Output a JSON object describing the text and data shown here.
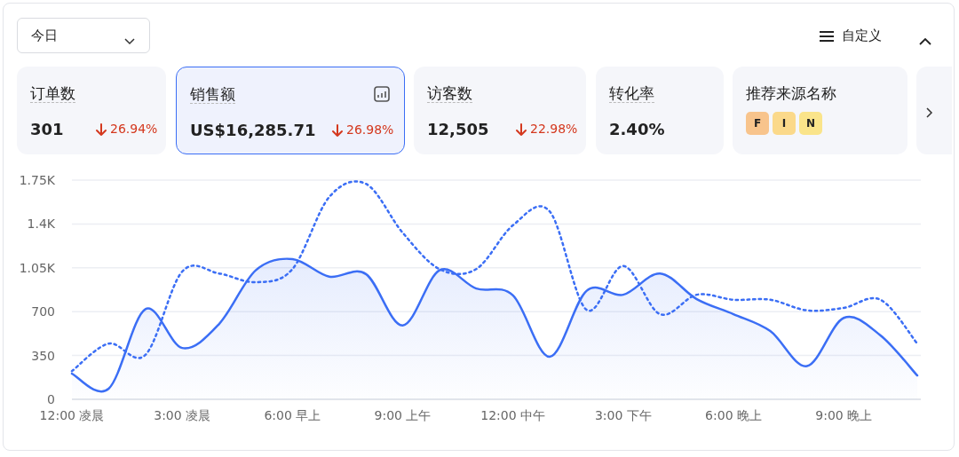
{
  "chart_data": [
    {
      "type": "other",
      "annotations": [
        "今日",
        "自定义",
        "订单数",
        "301",
        "26.94%",
        "销售额",
        "US$16,285.71",
        "26.98%",
        "访客数",
        "12,505",
        "22.98%",
        "转化率",
        "2.40%",
        "推荐来源名称",
        "F",
        "I",
        "N"
      ]
    },
    {
      "type": "line",
      "categories": [
        "12:00 凌晨",
        null,
        null,
        "3:00 凌晨",
        null,
        null,
        "6:00 早上",
        null,
        null,
        "9:00 上午",
        null,
        null,
        "12:00 中午",
        null,
        null,
        "3:00 下午",
        null,
        null,
        "6:00 晚上",
        null,
        null,
        "9:00 晚上",
        null,
        null
      ],
      "ylim": [
        0,
        1750
      ],
      "yticks": [
        0,
        350,
        700,
        {
          "value": 1050,
          "label": "1.05K"
        },
        {
          "value": 1400,
          "label": "1.4K"
        },
        {
          "value": 1750,
          "label": "1.75K"
        }
      ],
      "grid": "y",
      "series": [
        {
          "type": "area",
          "color": "#3b6ef5",
          "line_style": "solid",
          "values": [
            205,
            85,
            720,
            410,
            600,
            1030,
            1120,
            980,
            1000,
            590,
            1030,
            885,
            830,
            340,
            865,
            835,
            1005,
            800,
            680,
            545,
            265,
            650,
            510,
            190
          ]
        },
        {
          "type": "line",
          "color": "#3b6ef5",
          "line_style": "dotted",
          "values": [
            225,
            445,
            355,
            1020,
            1005,
            935,
            1040,
            1615,
            1720,
            1330,
            1040,
            1040,
            1390,
            1500,
            715,
            1065,
            680,
            835,
            795,
            795,
            710,
            730,
            795,
            445
          ]
        }
      ]
    }
  ]
}
